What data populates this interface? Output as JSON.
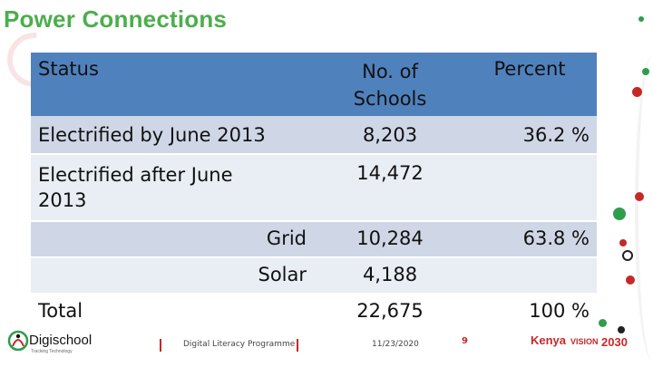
{
  "title": "Power Connections",
  "table": {
    "headers": {
      "status": "Status",
      "schools": "No. of Schools",
      "percent": "Percent"
    },
    "rows": [
      {
        "label": "Electrified by June 2013",
        "schools": "8,203",
        "percent": "36.2 %"
      },
      {
        "label": "Electrified after June 2013",
        "schools": "14,472",
        "percent": ""
      },
      {
        "label": "Grid",
        "schools": "10,284",
        "percent": "63.8 %"
      },
      {
        "label": "Solar",
        "schools": "4,188",
        "percent": ""
      },
      {
        "label": "Total",
        "schools": "22,675",
        "percent": "100 %"
      }
    ]
  },
  "footer": {
    "logo": "Digischool",
    "logo_tagline": "Tracking Technology",
    "programme": "Digital Literacy Programme",
    "date": "11/23/2020",
    "page": "9",
    "vision_brand": "Kenya",
    "vision_label": "VISION",
    "vision_year": "2030"
  },
  "colors": {
    "title_green": "#4cae4c",
    "header_blue": "#4f81bd",
    "row_dark": "#cfd7e7",
    "row_light": "#e9edf4",
    "accent_red": "#c62828",
    "accent_green": "#2e9e4a"
  }
}
